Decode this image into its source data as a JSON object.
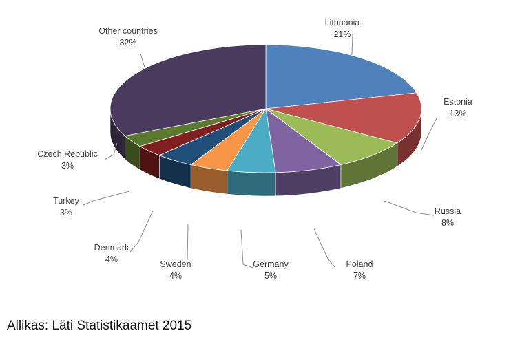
{
  "chart_data": {
    "type": "pie",
    "style": "3d-exploded-none",
    "categories": [
      "Lithuania",
      "Estonia",
      "Russia",
      "Poland",
      "Germany",
      "Sweden",
      "Denmark",
      "Turkey",
      "Czech Republic",
      "Other countries"
    ],
    "values": [
      21,
      13,
      8,
      7,
      5,
      4,
      4,
      3,
      3,
      32
    ],
    "value_labels": [
      "21%",
      "13%",
      "8%",
      "7%",
      "5%",
      "4%",
      "4%",
      "3%",
      "3%",
      "32%"
    ],
    "colors": [
      "#4f81bd",
      "#c0504d",
      "#9bbb59",
      "#8064a2",
      "#4bacc6",
      "#f79646",
      "#1f4e79",
      "#7f1f1f",
      "#5b7a2e",
      "#4a3a5e"
    ],
    "start_angle_deg": 0,
    "direction": "clockwise",
    "legend": "none",
    "data_labels": "category-and-percent-outside-with-leader-lines"
  },
  "source": {
    "text": "Allikas: Läti Statistikaamet 2015"
  }
}
